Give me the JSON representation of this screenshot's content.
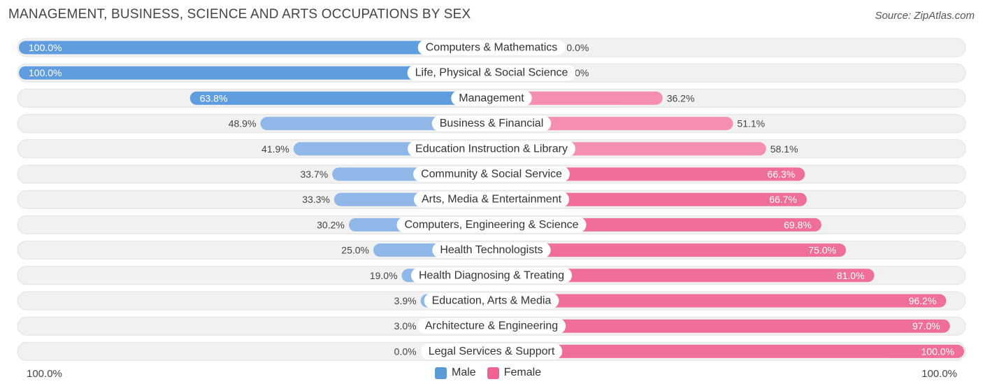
{
  "header": {
    "title": "MANAGEMENT, BUSINESS, SCIENCE AND ARTS OCCUPATIONS BY SEX",
    "source": "Source: ZipAtlas.com"
  },
  "axis": {
    "left_label": "100.0%",
    "right_label": "100.0%"
  },
  "legend": {
    "male_label": "Male",
    "female_label": "Female"
  },
  "colors": {
    "male_bar": "#8fb8e8",
    "male_bar_strong": "#5f9ddf",
    "female_bar": "#f48fb1",
    "female_bar_strong": "#ef6f98",
    "female_bar_light": "#f7aec6",
    "row_background": "#f1f1f1",
    "male_legend": "#5b9bd5",
    "female_legend": "#f06292"
  },
  "chart_data": {
    "type": "bar",
    "orientation": "horizontal-diverging",
    "title": "MANAGEMENT, BUSINESS, SCIENCE AND ARTS OCCUPATIONS BY SEX",
    "categories": [
      "Computers & Mathematics",
      "Life, Physical & Social Science",
      "Management",
      "Business & Financial",
      "Education Instruction & Library",
      "Community & Social Service",
      "Arts, Media & Entertainment",
      "Computers, Engineering & Science",
      "Health Technologists",
      "Health Diagnosing & Treating",
      "Education, Arts & Media",
      "Architecture & Engineering",
      "Legal Services & Support"
    ],
    "series": [
      {
        "name": "Male",
        "values": [
          100.0,
          100.0,
          63.8,
          48.9,
          41.9,
          33.7,
          33.3,
          30.2,
          25.0,
          19.0,
          3.9,
          3.0,
          0.0
        ],
        "labels": [
          "100.0%",
          "100.0%",
          "63.8%",
          "48.9%",
          "41.9%",
          "33.7%",
          "33.3%",
          "30.2%",
          "25.0%",
          "19.0%",
          "3.9%",
          "3.0%",
          "0.0%"
        ]
      },
      {
        "name": "Female",
        "values": [
          0.0,
          0.0,
          36.2,
          51.1,
          58.1,
          66.3,
          66.7,
          69.8,
          75.0,
          81.0,
          96.2,
          97.0,
          100.0
        ],
        "labels": [
          "0.0%",
          "0.0%",
          "36.2%",
          "51.1%",
          "58.1%",
          "66.3%",
          "66.7%",
          "69.8%",
          "75.0%",
          "81.0%",
          "96.2%",
          "97.0%",
          "100.0%"
        ]
      }
    ],
    "xlim": [
      -100,
      100
    ],
    "legend_position": "bottom-center",
    "grid": false
  }
}
